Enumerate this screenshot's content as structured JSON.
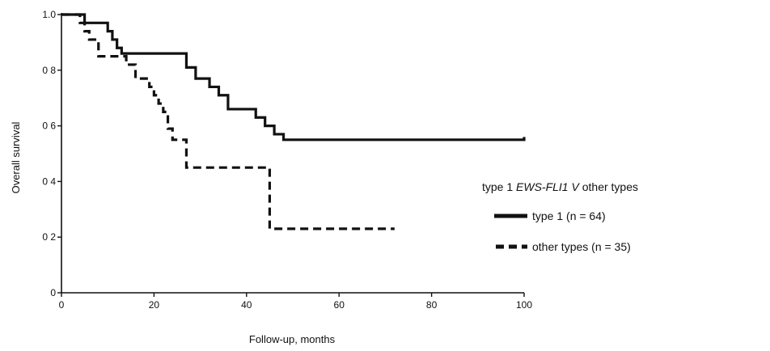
{
  "chart_data": {
    "type": "line",
    "title": "",
    "xlabel": "Follow-up, months",
    "ylabel": "Overall survival",
    "xlim": [
      0,
      100
    ],
    "ylim": [
      0,
      1.0
    ],
    "x_ticks": [
      0,
      20,
      40,
      60,
      80,
      100
    ],
    "y_ticks": [
      0,
      0.2,
      0.4,
      0.6,
      0.8,
      1.0
    ],
    "x_tick_labels": [
      "0",
      "20",
      "40",
      "60",
      "80",
      "100"
    ],
    "y_tick_labels": [
      "0",
      "0 2",
      "0 4",
      "0 6",
      "0 8",
      "1.0"
    ],
    "grid": false,
    "legend": {
      "position": "right",
      "title_parts": [
        "type 1 ",
        "EWS-FLI1",
        " V",
        " other types"
      ],
      "entries": [
        "type 1 (n = 64)",
        "other types (n = 35)"
      ]
    },
    "series": [
      {
        "name": "type 1 (n = 64)",
        "style": "solid",
        "color": "#111111",
        "steps": [
          [
            0,
            1.0
          ],
          [
            5,
            0.97
          ],
          [
            10,
            0.94
          ],
          [
            11,
            0.91
          ],
          [
            12,
            0.88
          ],
          [
            13,
            0.86
          ],
          [
            27,
            0.81
          ],
          [
            29,
            0.77
          ],
          [
            32,
            0.74
          ],
          [
            34,
            0.71
          ],
          [
            36,
            0.66
          ],
          [
            42,
            0.63
          ],
          [
            44,
            0.6
          ],
          [
            46,
            0.57
          ],
          [
            48,
            0.55
          ],
          [
            100,
            0.56
          ]
        ]
      },
      {
        "name": "other types (n = 35)",
        "style": "dashed",
        "color": "#111111",
        "steps": [
          [
            0,
            1.0
          ],
          [
            4,
            0.97
          ],
          [
            5,
            0.94
          ],
          [
            6,
            0.91
          ],
          [
            8,
            0.85
          ],
          [
            14,
            0.82
          ],
          [
            16,
            0.77
          ],
          [
            19,
            0.74
          ],
          [
            20,
            0.71
          ],
          [
            21,
            0.68
          ],
          [
            22,
            0.65
          ],
          [
            23,
            0.59
          ],
          [
            24,
            0.55
          ],
          [
            27,
            0.45
          ],
          [
            44,
            0.45
          ],
          [
            45,
            0.23
          ],
          [
            72,
            0.23
          ]
        ]
      }
    ]
  }
}
